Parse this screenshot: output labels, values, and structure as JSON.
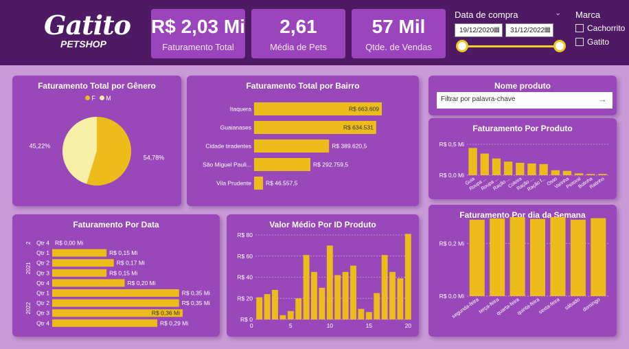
{
  "header": {
    "logo_text": "Gatito",
    "logo_sub": "PETSHOP",
    "kpis": [
      {
        "value": "R$ 2,03 Mi",
        "label": "Faturamento Total"
      },
      {
        "value": "2,61",
        "label": "Média de Pets"
      },
      {
        "value": "57 Mil",
        "label": "Qtde. de Vendas"
      }
    ],
    "date_filter": {
      "title": "Data de compra",
      "start": "19/12/2020",
      "end": "31/12/2022"
    },
    "brand_filter": {
      "title": "Marca",
      "options": [
        "Cachorrito",
        "Gatito"
      ]
    }
  },
  "colors": {
    "bar": "#ebbc1a",
    "pie_f": "#ebbc1a",
    "pie_m": "#f7efa5",
    "panel": "#9848b8",
    "header": "#4e1a63"
  },
  "panels": {
    "genero_title": "Faturamento Total por Gênero",
    "bairro_title": "Faturamento Total por Bairro",
    "data_title": "Faturamento Por Data",
    "valor_title": "Valor Médio Por ID Produto",
    "nome_title": "Nome produto",
    "search_placeholder": "Filtrar por palavra-chave",
    "produto_title": "Faturamento Por Produto",
    "semana_title": "Faturamento Por dia da Semana"
  },
  "chart_data": [
    {
      "id": "genero",
      "type": "pie",
      "title": "Faturamento Total por Gênero",
      "categories": [
        "F",
        "M"
      ],
      "values": [
        54.78,
        45.22
      ],
      "labels": [
        "54,78%",
        "45,22%"
      ],
      "legend_position": "top-center"
    },
    {
      "id": "bairro",
      "type": "bar",
      "orientation": "horizontal",
      "title": "Faturamento Total por Bairro",
      "categories": [
        "Itaquera",
        "Guaianases",
        "Cidade tiradentes",
        "São Miguel Pauli...",
        "Vila Prudente"
      ],
      "values": [
        663609,
        634531,
        389620.5,
        292759.5,
        46557.5
      ],
      "labels": [
        "R$ 663.609",
        "R$ 634.531",
        "R$ 389.620,5",
        "R$ 292.759,5",
        "R$ 46.557,5"
      ]
    },
    {
      "id": "data",
      "type": "bar",
      "orientation": "horizontal",
      "title": "Faturamento Por Data",
      "years": [
        {
          "label": "2",
          "rows": 1
        },
        {
          "label": "2021",
          "rows": 4
        },
        {
          "label": "2022",
          "rows": 4
        }
      ],
      "categories": [
        "Qtr 4",
        "Qtr 1",
        "Qtr 2",
        "Qtr 3",
        "Qtr 4",
        "Qtr 1",
        "Qtr 2",
        "Qtr 3",
        "Qtr 4"
      ],
      "values": [
        0.0,
        0.15,
        0.17,
        0.15,
        0.2,
        0.35,
        0.35,
        0.36,
        0.29
      ],
      "labels": [
        "R$ 0,00 Mi",
        "R$ 0,15 Mi",
        "R$ 0,17 Mi",
        "R$ 0,15 Mi",
        "R$ 0,20 Mi",
        "R$ 0,35 Mi",
        "R$ 0,35 Mi",
        "R$ 0,36 Mi",
        "R$ 0,29 Mi"
      ]
    },
    {
      "id": "valor",
      "type": "bar",
      "title": "Valor Médio Por ID Produto",
      "x": [
        1,
        2,
        3,
        4,
        5,
        6,
        7,
        8,
        9,
        10,
        11,
        12,
        13,
        14,
        15,
        16,
        17,
        18,
        19,
        20
      ],
      "values": [
        21,
        24,
        28,
        4,
        8,
        20,
        61,
        45,
        30,
        70,
        42,
        45,
        51,
        10,
        7,
        25,
        61,
        45,
        39,
        81
      ],
      "ylim": [
        0,
        80
      ],
      "yticks": [
        "R$ 0",
        "R$ 20",
        "R$ 40",
        "R$ 60",
        "R$ 80"
      ],
      "xticks": [
        "0",
        "5",
        "10",
        "15",
        "20"
      ]
    },
    {
      "id": "produto",
      "type": "bar",
      "title": "Faturamento Por Produto",
      "categories": [
        "Guia",
        "Roupa ...",
        "Roupa ...",
        "Ração ...",
        "Coleira",
        "Ração ...",
        "Ração f...",
        "Osso",
        "Varinha",
        "Peitoral",
        "Bolinha",
        "Ratinho"
      ],
      "values": [
        0.44,
        0.35,
        0.27,
        0.22,
        0.2,
        0.19,
        0.18,
        0.08,
        0.07,
        0.03,
        0.02,
        0.02
      ],
      "ylim": [
        0,
        0.5
      ],
      "yticks": [
        "R$ 0,0 Mi",
        "R$ 0,5 Mi"
      ]
    },
    {
      "id": "semana",
      "type": "bar",
      "title": "Faturamento Por dia da Semana",
      "categories": [
        "segunda-feira",
        "terça-feira",
        "quarta-feira",
        "quinta-feira",
        "sexta-feira",
        "sábado",
        "domingo"
      ],
      "values": [
        0.29,
        0.295,
        0.3,
        0.293,
        0.3,
        0.29,
        0.296
      ],
      "ylim": [
        0,
        0.3
      ],
      "yticks": [
        "R$ 0,0 Mi",
        "R$ 0,2 Mi"
      ]
    }
  ]
}
